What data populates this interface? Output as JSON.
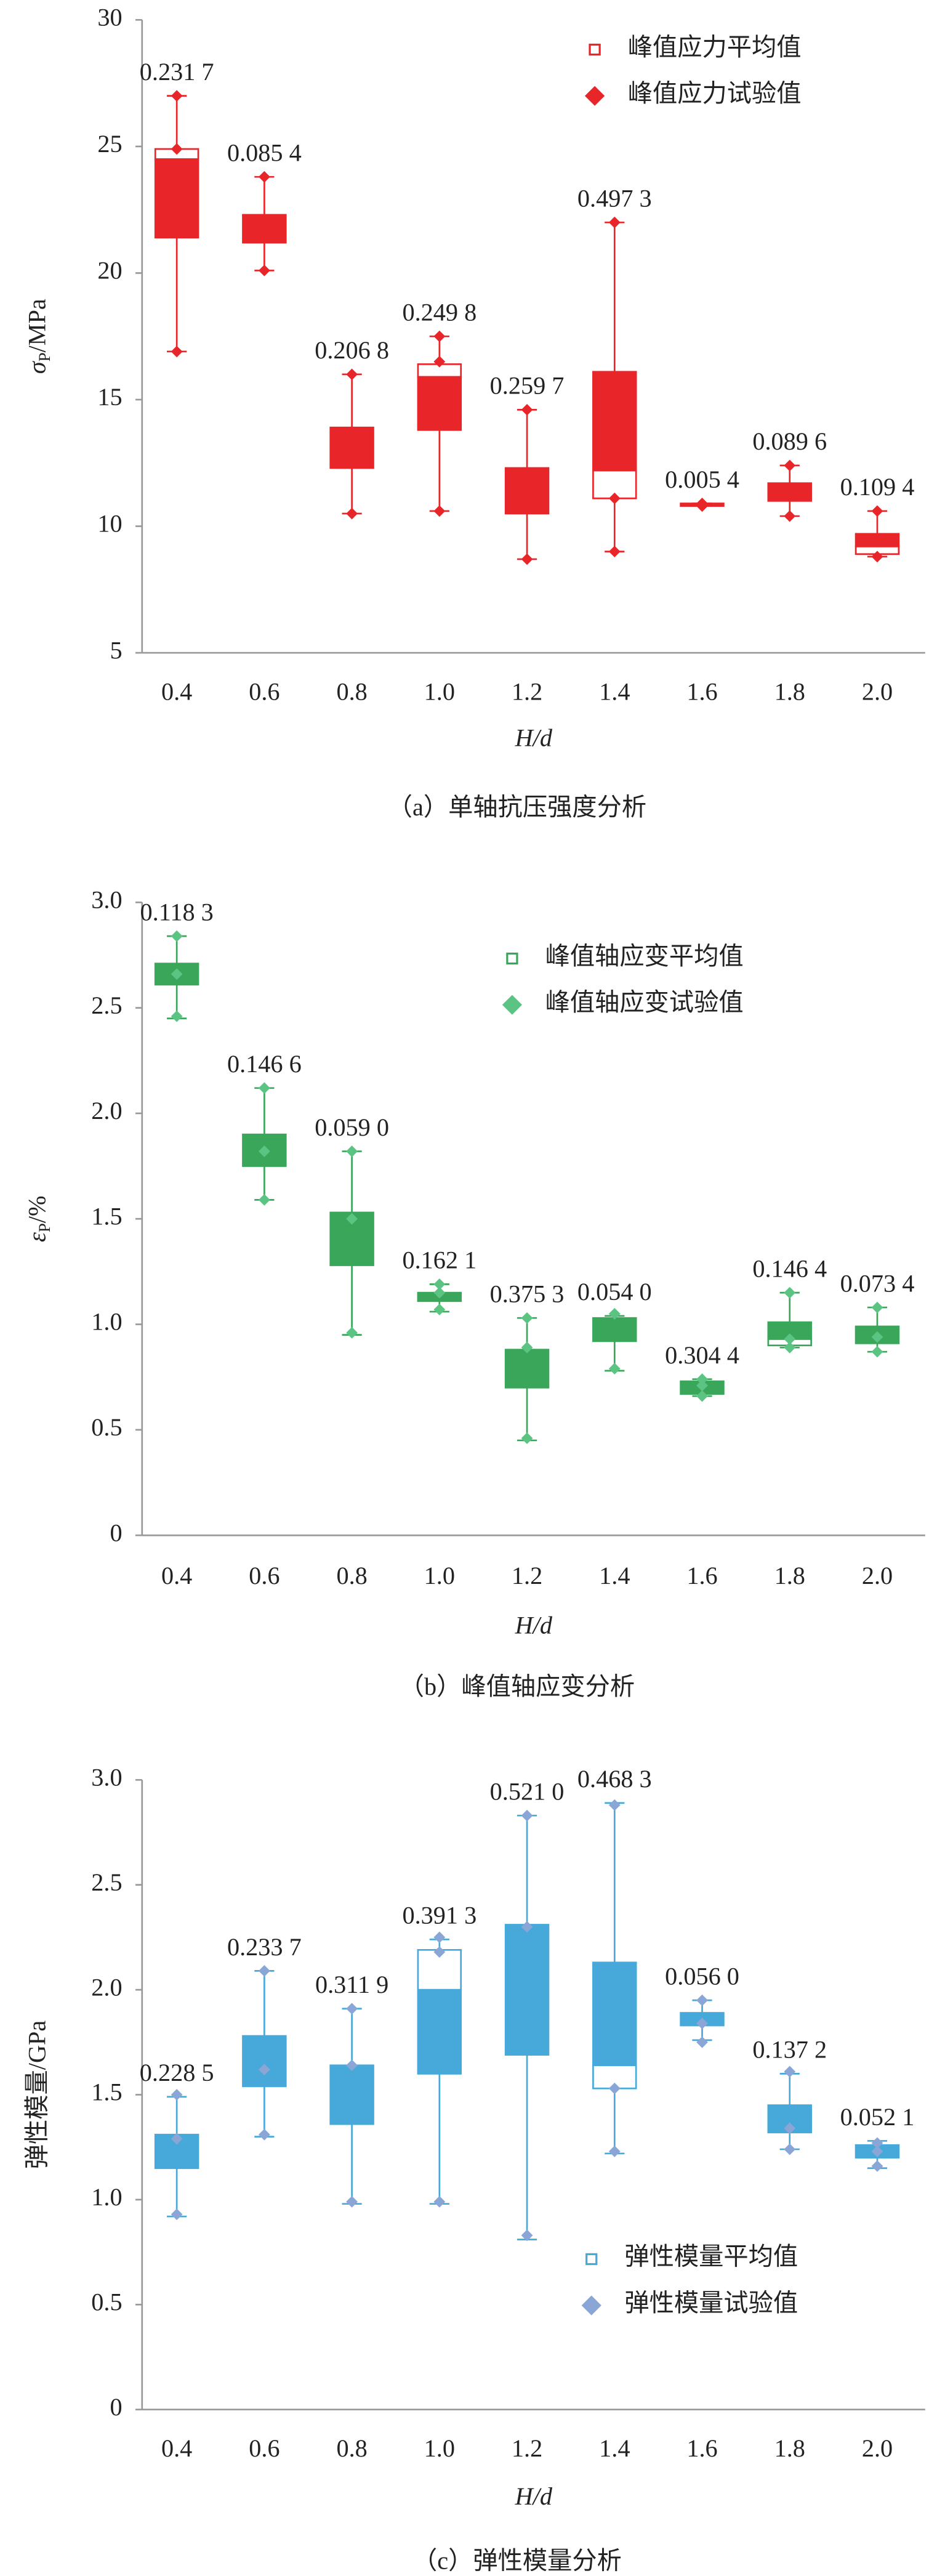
{
  "chart_data": [
    {
      "type": "box",
      "caption": "（a）单轴抗压强度分析",
      "x_label": "H/d",
      "y_label": {
        "symbol": "σ",
        "subscript": "P",
        "unit": "/MPa"
      },
      "categories": [
        "0.4",
        "0.6",
        "0.8",
        "1.0",
        "1.2",
        "1.4",
        "1.6",
        "1.8",
        "2.0"
      ],
      "ylim": [
        5,
        30
      ],
      "yticks": [
        5,
        10,
        15,
        20,
        25,
        30
      ],
      "legend": "upper right",
      "series": [
        {
          "name": "峰值应力平均值",
          "color": "#e8262a",
          "whisker": [
            [
              16.9,
              27.0
            ],
            [
              20.1,
              23.8
            ],
            [
              10.5,
              16.0
            ],
            [
              10.6,
              17.5
            ],
            [
              8.7,
              14.6
            ],
            [
              9.0,
              22.0
            ],
            [
              10.8,
              10.9
            ],
            [
              10.4,
              12.4
            ],
            [
              8.8,
              10.6
            ]
          ],
          "box": [
            [
              21.4,
              24.5
            ],
            [
              21.2,
              22.3
            ],
            [
              12.3,
              13.9
            ],
            [
              13.8,
              15.9
            ],
            [
              10.5,
              12.3
            ],
            [
              12.2,
              16.1
            ],
            [
              10.8,
              10.9
            ],
            [
              11.0,
              11.7
            ],
            [
              9.2,
              9.7
            ]
          ],
          "open": [
            [
              24.5,
              24.9
            ],
            null,
            null,
            [
              15.9,
              16.4
            ],
            null,
            [
              11.1,
              12.2
            ],
            null,
            null,
            [
              8.9,
              9.2
            ]
          ]
        },
        {
          "name": "峰值应力试验值",
          "color": "#e8262a",
          "values": [
            [
              27.0,
              24.9,
              16.9
            ],
            [
              23.8,
              22.0,
              20.1
            ],
            [
              16.0,
              13.2,
              10.5
            ],
            [
              17.5,
              16.5,
              10.6
            ],
            [
              14.6,
              11.5,
              8.7
            ],
            [
              22.0,
              11.1,
              9.0
            ],
            [
              10.9,
              10.8,
              10.8
            ],
            [
              12.4,
              11.3,
              10.4
            ],
            [
              10.6,
              8.8,
              8.8
            ]
          ]
        }
      ],
      "annotations": [
        "0.231 7",
        "0.085 4",
        "0.206 8",
        "0.249 8",
        "0.259 7",
        "0.497 3",
        "0.005 4",
        "0.089 6",
        "0.109 4"
      ]
    },
    {
      "type": "box",
      "caption": "（b）峰值轴应变分析",
      "x_label": "H/d",
      "y_label": {
        "symbol": "ε",
        "subscript": "P",
        "unit": "/%"
      },
      "categories": [
        "0.4",
        "0.6",
        "0.8",
        "1.0",
        "1.2",
        "1.4",
        "1.6",
        "1.8",
        "2.0"
      ],
      "ylim": [
        0,
        3
      ],
      "yticks": [
        0,
        {
          "value": 0.5,
          "label": "0.5"
        },
        {
          "value": 1,
          "label": "1.0"
        },
        {
          "value": 1.5,
          "label": "1.5"
        },
        {
          "value": 2,
          "label": "2.0"
        },
        {
          "value": 2.5,
          "label": "2.5"
        },
        {
          "value": 3,
          "label": "3.0"
        }
      ],
      "legend": "upper right",
      "series": [
        {
          "name": "峰值轴应变平均值",
          "color": "#3aa65a",
          "whisker": [
            [
              2.45,
              2.84
            ],
            [
              1.59,
              2.12
            ],
            [
              0.95,
              1.82
            ],
            [
              1.06,
              1.19
            ],
            [
              0.45,
              1.03
            ],
            [
              0.78,
              1.04
            ],
            [
              0.66,
              0.74
            ],
            [
              0.89,
              1.15
            ],
            [
              0.87,
              1.08
            ]
          ],
          "box": [
            [
              2.61,
              2.71
            ],
            [
              1.75,
              1.9
            ],
            [
              1.28,
              1.53
            ],
            [
              1.11,
              1.15
            ],
            [
              0.7,
              0.88
            ],
            [
              0.92,
              1.03
            ],
            [
              0.67,
              0.73
            ],
            [
              0.93,
              1.01
            ],
            [
              0.91,
              0.99
            ]
          ],
          "open": [
            null,
            null,
            null,
            null,
            null,
            null,
            null,
            [
              0.9,
              0.93
            ],
            null
          ]
        },
        {
          "name": "峰值轴应变试验值",
          "color": "#5cc483",
          "values": [
            [
              2.84,
              2.66,
              2.46
            ],
            [
              2.12,
              1.82,
              1.59
            ],
            [
              1.82,
              1.5,
              0.96
            ],
            [
              1.19,
              1.15,
              1.07
            ],
            [
              1.03,
              0.89,
              0.46
            ],
            [
              1.05,
              1.05,
              0.79
            ],
            [
              0.74,
              0.71,
              0.66
            ],
            [
              1.15,
              0.93,
              0.89
            ],
            [
              1.08,
              0.94,
              0.87
            ]
          ]
        }
      ],
      "annotations": [
        "0.118 3",
        "0.146 6",
        "0.059 0",
        "0.162 1",
        "0.375 3",
        "0.054 0",
        "0.304 4",
        "0.146 4",
        "0.073 4"
      ]
    },
    {
      "type": "box",
      "caption": "（c）弹性模量分析",
      "x_label": "H/d",
      "y_label": {
        "symbol": "弹性模量",
        "subscript": "",
        "unit": "/GPa"
      },
      "categories": [
        "0.4",
        "0.6",
        "0.8",
        "1.0",
        "1.2",
        "1.4",
        "1.6",
        "1.8",
        "2.0"
      ],
      "ylim": [
        0,
        3
      ],
      "yticks": [
        0,
        {
          "value": 0.5,
          "label": "0.5"
        },
        {
          "value": 1,
          "label": "1.0"
        },
        {
          "value": 1.5,
          "label": "1.5"
        },
        {
          "value": 2,
          "label": "2.0"
        },
        {
          "value": 2.5,
          "label": "2.5"
        },
        {
          "value": 3,
          "label": "3.0"
        }
      ],
      "legend": "lower right",
      "series": [
        {
          "name": "弹性模量平均值",
          "color": "#46a9d9",
          "whisker": [
            [
              0.92,
              1.49
            ],
            [
              1.3,
              2.09
            ],
            [
              0.98,
              1.91
            ],
            [
              0.98,
              2.24
            ],
            [
              0.81,
              2.83
            ],
            [
              1.22,
              2.89
            ],
            [
              1.76,
              1.95
            ],
            [
              1.24,
              1.6
            ],
            [
              1.15,
              1.28
            ]
          ],
          "box": [
            [
              1.15,
              1.31
            ],
            [
              1.54,
              1.78
            ],
            [
              1.36,
              1.64
            ],
            [
              1.6,
              2.0
            ],
            [
              1.69,
              2.31
            ],
            [
              1.64,
              2.13
            ],
            [
              1.83,
              1.89
            ],
            [
              1.32,
              1.45
            ],
            [
              1.2,
              1.26
            ]
          ],
          "open": [
            null,
            null,
            null,
            [
              2.0,
              2.19
            ],
            null,
            [
              1.53,
              1.64
            ],
            null,
            null,
            null
          ]
        },
        {
          "name": "弹性模量试验值",
          "color": "#8aa6d6",
          "values": [
            [
              1.5,
              1.29,
              0.93
            ],
            [
              2.09,
              1.62,
              1.31
            ],
            [
              1.91,
              1.64,
              0.99
            ],
            [
              2.25,
              2.18,
              0.99
            ],
            [
              2.83,
              2.3,
              0.83
            ],
            [
              2.88,
              1.53,
              1.23
            ],
            [
              1.95,
              1.84,
              1.75
            ],
            [
              1.61,
              1.34,
              1.24
            ],
            [
              1.27,
              1.23,
              1.16
            ]
          ]
        }
      ],
      "annotations": [
        "0.228 5",
        "0.233 7",
        "0.311 9",
        "0.391 3",
        "0.521 0",
        "0.468 3",
        "0.056 0",
        "0.137 2",
        "0.052 1"
      ]
    }
  ]
}
